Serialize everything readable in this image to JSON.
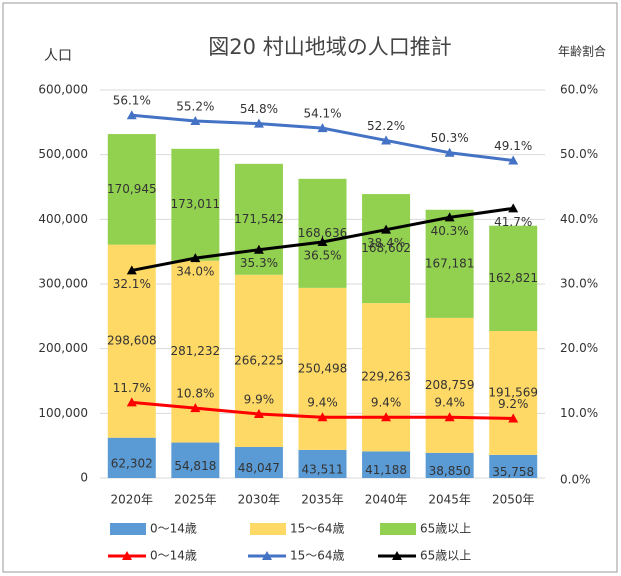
{
  "chart_data": {
    "type": "bar",
    "title": "図20 村山地域の人口推計",
    "ylabel": "人口",
    "y2label": "年齢割合",
    "categories": [
      "2020年",
      "2025年",
      "2030年",
      "2035年",
      "2040年",
      "2045年",
      "2050年"
    ],
    "stacked": true,
    "ylim": [
      0,
      600000
    ],
    "yticks": [
      0,
      {
        "value": 100000,
        "label": "100,000"
      },
      {
        "value": 200000,
        "label": "200,000"
      },
      {
        "value": 300000,
        "label": "300,000"
      },
      {
        "value": 400000,
        "label": "400,000"
      },
      {
        "value": 500000,
        "label": "500,000"
      },
      {
        "value": 600000,
        "label": "600,000"
      }
    ],
    "y2lim": [
      0,
      60
    ],
    "y2ticks": [
      {
        "value": 0,
        "label": "0.0%"
      },
      {
        "value": 10,
        "label": "10.0%"
      },
      {
        "value": 20,
        "label": "20.0%"
      },
      {
        "value": 30,
        "label": "30.0%"
      },
      {
        "value": 40,
        "label": "40.0%"
      },
      {
        "value": 50,
        "label": "50.0%"
      },
      {
        "value": 60,
        "label": "60.0%"
      }
    ],
    "series": [
      {
        "name": "0～14歳",
        "type": "bar",
        "color": "#5b9bd5",
        "values": [
          62302,
          54818,
          48047,
          43511,
          41188,
          38850,
          35758
        ],
        "value_labels": [
          "62,302",
          "54,818",
          "48,047",
          "43,511",
          "41,188",
          "38,850",
          "35,758"
        ]
      },
      {
        "name": "15～64歳",
        "type": "bar",
        "color": "#ffd966",
        "values": [
          298608,
          281232,
          266225,
          250498,
          229263,
          208759,
          191569
        ],
        "value_labels": [
          "298,608",
          "281,232",
          "266,225",
          "250,498",
          "229,263",
          "208,759",
          "191,569"
        ]
      },
      {
        "name": "65歳以上",
        "type": "bar",
        "color": "#92d050",
        "values": [
          170945,
          173011,
          171542,
          168636,
          168602,
          167181,
          162821
        ],
        "value_labels": [
          "170,945",
          "173,011",
          "171,542",
          "168,636",
          "168,602",
          "167,181",
          "162,821"
        ]
      },
      {
        "name": "0～14歳",
        "type": "line",
        "axis": "y2",
        "color": "#ff0000",
        "values": [
          11.7,
          10.8,
          9.9,
          9.4,
          9.4,
          9.4,
          9.2
        ],
        "value_labels": [
          "11.7%",
          "10.8%",
          "9.9%",
          "9.4%",
          "9.4%",
          "9.4%",
          "9.2%"
        ]
      },
      {
        "name": "15～64歳",
        "type": "line",
        "axis": "y2",
        "color": "#4472c4",
        "values": [
          56.1,
          55.2,
          54.8,
          54.1,
          52.2,
          50.3,
          49.1
        ],
        "value_labels": [
          "56.1%",
          "55.2%",
          "54.8%",
          "54.1%",
          "52.2%",
          "50.3%",
          "49.1%"
        ]
      },
      {
        "name": "65歳以上",
        "type": "line",
        "axis": "y2",
        "color": "#000000",
        "values": [
          32.1,
          34,
          35.3,
          36.5,
          38.4,
          40.3,
          41.7
        ],
        "value_labels": [
          "32.1%",
          "34.0%",
          "35.3%",
          "36.5%",
          "38.4%",
          "40.3%",
          "41.7%"
        ]
      }
    ]
  }
}
